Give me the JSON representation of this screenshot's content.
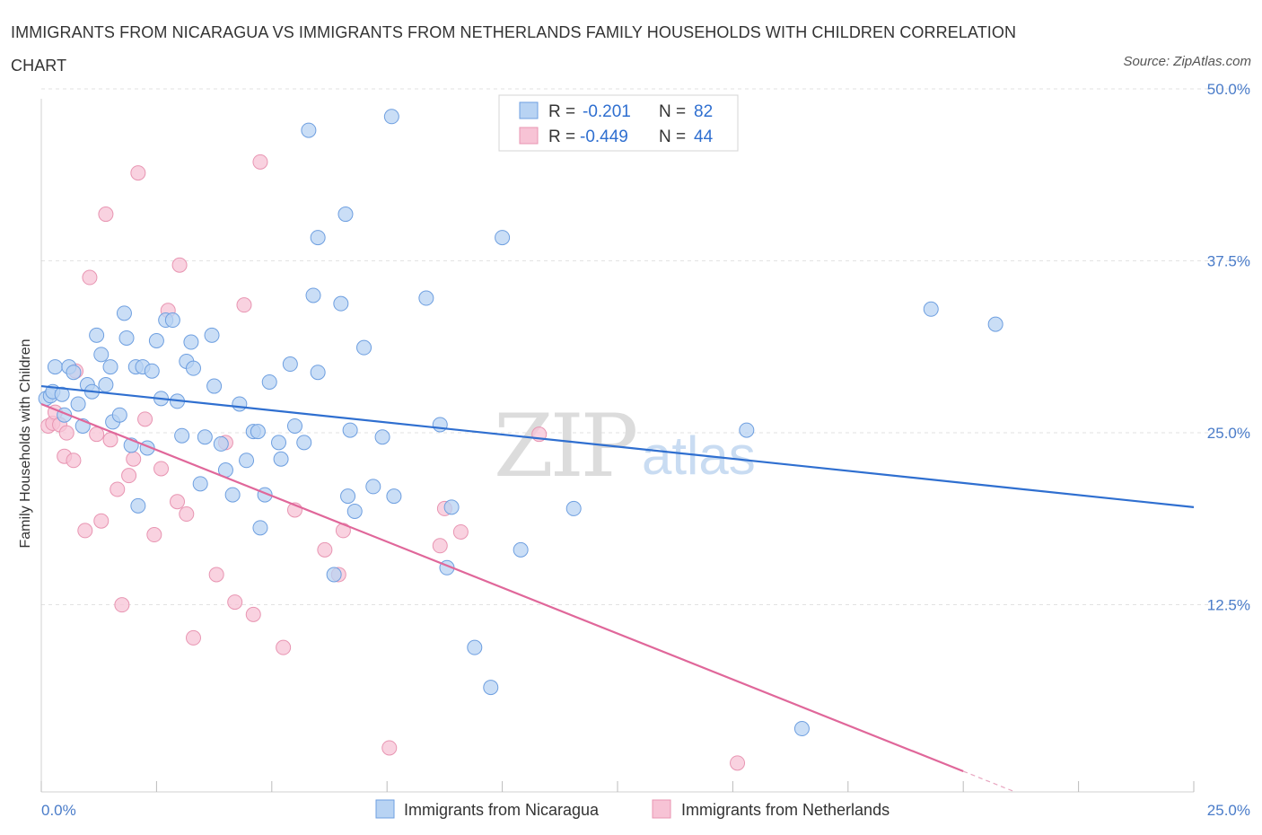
{
  "title": "IMMIGRANTS FROM NICARAGUA VS IMMIGRANTS FROM NETHERLANDS FAMILY HOUSEHOLDS WITH CHILDREN CORRELATION CHART",
  "source": "Source: ZipAtlas.com",
  "watermark": {
    "zip": "ZIP",
    "atlas": "atlas"
  },
  "legend": {
    "r_label": "R =",
    "n_label": "N =",
    "rows": [
      {
        "r": "-0.201",
        "n": "82"
      },
      {
        "r": "-0.449",
        "n": "44"
      }
    ]
  },
  "colors": {
    "blue_fill": "#b8d3f3",
    "blue_stroke": "#6e9fe0",
    "blue_line": "#2f6fd0",
    "pink_fill": "#f7c3d5",
    "pink_stroke": "#e895b2",
    "pink_line": "#e0679a"
  },
  "chart_data": {
    "type": "scatter",
    "title": "IMMIGRANTS FROM NICARAGUA VS IMMIGRANTS FROM NETHERLANDS FAMILY HOUSEHOLDS WITH CHILDREN CORRELATION CHART",
    "xlabel": "",
    "ylabel": "Family Households with Children",
    "xlim": [
      0,
      25
    ],
    "ylim": [
      0,
      50
    ],
    "x_tick_labels": [
      "0.0%",
      "25.0%"
    ],
    "y_tick_labels": [
      "12.5%",
      "25.0%",
      "37.5%",
      "50.0%"
    ],
    "grid": true,
    "legend_position": "top-center",
    "series": [
      {
        "name": "Immigrants from Nicaragua",
        "color": "blue",
        "trend": {
          "x": [
            0,
            25
          ],
          "y": [
            29.5,
            20.7
          ]
        },
        "points": [
          [
            0.1,
            28.6
          ],
          [
            0.2,
            28.8
          ],
          [
            0.25,
            29.1
          ],
          [
            0.3,
            30.9
          ],
          [
            0.45,
            28.9
          ],
          [
            0.5,
            27.4
          ],
          [
            0.6,
            30.9
          ],
          [
            0.7,
            30.5
          ],
          [
            0.8,
            28.2
          ],
          [
            0.9,
            26.6
          ],
          [
            1.0,
            29.6
          ],
          [
            1.1,
            29.1
          ],
          [
            1.2,
            33.2
          ],
          [
            1.3,
            31.8
          ],
          [
            1.4,
            29.6
          ],
          [
            1.5,
            30.9
          ],
          [
            1.55,
            26.9
          ],
          [
            1.7,
            27.4
          ],
          [
            1.8,
            34.8
          ],
          [
            1.85,
            33.0
          ],
          [
            1.95,
            25.2
          ],
          [
            2.05,
            30.9
          ],
          [
            2.1,
            20.8
          ],
          [
            2.2,
            30.9
          ],
          [
            2.3,
            25.0
          ],
          [
            2.4,
            30.6
          ],
          [
            2.5,
            32.8
          ],
          [
            2.6,
            28.6
          ],
          [
            2.7,
            34.3
          ],
          [
            2.85,
            34.3
          ],
          [
            2.95,
            28.4
          ],
          [
            3.05,
            25.9
          ],
          [
            3.15,
            31.3
          ],
          [
            3.25,
            32.7
          ],
          [
            3.3,
            30.8
          ],
          [
            3.45,
            22.4
          ],
          [
            3.55,
            25.8
          ],
          [
            3.7,
            33.2
          ],
          [
            3.75,
            29.5
          ],
          [
            3.9,
            25.3
          ],
          [
            4.0,
            23.4
          ],
          [
            4.15,
            21.6
          ],
          [
            4.3,
            28.2
          ],
          [
            4.45,
            24.1
          ],
          [
            4.6,
            26.2
          ],
          [
            4.7,
            26.2
          ],
          [
            4.75,
            19.2
          ],
          [
            4.85,
            21.6
          ],
          [
            4.95,
            29.8
          ],
          [
            5.15,
            25.4
          ],
          [
            5.2,
            24.2
          ],
          [
            5.4,
            31.1
          ],
          [
            5.5,
            26.6
          ],
          [
            5.7,
            25.4
          ],
          [
            5.8,
            48.1
          ],
          [
            5.9,
            36.1
          ],
          [
            6.0,
            30.5
          ],
          [
            6.5,
            35.5
          ],
          [
            6.35,
            15.8
          ],
          [
            6.6,
            42.0
          ],
          [
            6.7,
            26.3
          ],
          [
            6.65,
            21.5
          ],
          [
            6.8,
            20.4
          ],
          [
            7.0,
            32.3
          ],
          [
            7.2,
            22.2
          ],
          [
            7.4,
            25.8
          ],
          [
            7.65,
            21.5
          ],
          [
            8.35,
            35.9
          ],
          [
            8.65,
            26.7
          ],
          [
            8.8,
            16.3
          ],
          [
            8.9,
            20.7
          ],
          [
            9.4,
            10.5
          ],
          [
            9.75,
            7.6
          ],
          [
            10.0,
            40.3
          ],
          [
            10.4,
            17.6
          ],
          [
            11.55,
            20.6
          ],
          [
            6.0,
            40.3
          ],
          [
            7.6,
            49.1
          ],
          [
            15.3,
            26.3
          ],
          [
            16.5,
            4.6
          ],
          [
            19.3,
            35.1
          ],
          [
            20.7,
            34.0
          ]
        ]
      },
      {
        "name": "Immigrants from Netherlands",
        "color": "pink",
        "trend": {
          "x": [
            0,
            20.0
          ],
          "y": [
            28.2,
            1.5
          ]
        },
        "points": [
          [
            0.15,
            26.6
          ],
          [
            0.25,
            26.8
          ],
          [
            0.3,
            27.6
          ],
          [
            0.4,
            26.7
          ],
          [
            0.5,
            24.4
          ],
          [
            0.55,
            26.1
          ],
          [
            0.7,
            24.1
          ],
          [
            0.75,
            30.6
          ],
          [
            0.95,
            19.0
          ],
          [
            1.05,
            37.4
          ],
          [
            1.2,
            26.0
          ],
          [
            1.3,
            19.7
          ],
          [
            1.4,
            42.0
          ],
          [
            1.5,
            25.6
          ],
          [
            1.65,
            22.0
          ],
          [
            1.75,
            13.6
          ],
          [
            1.9,
            23.0
          ],
          [
            2.0,
            24.2
          ],
          [
            2.1,
            45.0
          ],
          [
            2.25,
            27.1
          ],
          [
            2.45,
            18.7
          ],
          [
            2.6,
            23.5
          ],
          [
            2.75,
            35.0
          ],
          [
            2.95,
            21.1
          ],
          [
            3.0,
            38.3
          ],
          [
            3.15,
            20.2
          ],
          [
            3.3,
            11.2
          ],
          [
            3.8,
            15.8
          ],
          [
            4.0,
            25.4
          ],
          [
            4.2,
            13.8
          ],
          [
            4.4,
            35.4
          ],
          [
            4.6,
            12.9
          ],
          [
            4.75,
            45.8
          ],
          [
            5.25,
            10.5
          ],
          [
            5.5,
            20.5
          ],
          [
            6.15,
            17.6
          ],
          [
            6.45,
            15.8
          ],
          [
            6.55,
            19.0
          ],
          [
            7.55,
            3.2
          ],
          [
            8.65,
            17.9
          ],
          [
            8.75,
            20.6
          ],
          [
            9.1,
            18.9
          ],
          [
            10.8,
            26.0
          ],
          [
            15.1,
            2.1
          ]
        ]
      }
    ]
  },
  "bottom_legend": [
    "Immigrants from Nicaragua",
    "Immigrants from Netherlands"
  ]
}
